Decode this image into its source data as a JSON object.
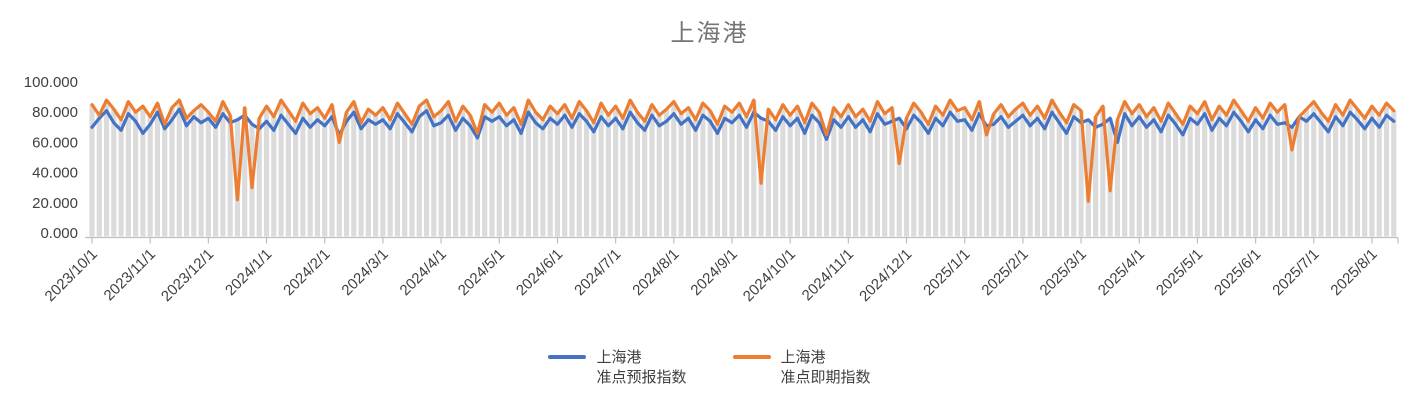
{
  "title": "上海港",
  "legend": [
    {
      "line1": "上海港",
      "line2": "准点预报指数"
    },
    {
      "line1": "上海港",
      "line2": "准点即期指数"
    }
  ],
  "colors": {
    "forecast_line": "#4472C4",
    "spot_line": "#ED7D31",
    "drop_lines": "#DBDBDB",
    "axis": "#BFBFBF",
    "tick_text": "#404040",
    "title_text": "#757575"
  },
  "chart_data": {
    "type": "line",
    "title": "上海港",
    "xlabel": "",
    "ylabel": "",
    "ylim": [
      0,
      100
    ],
    "y_tick_labels": [
      "0.000",
      "20.000",
      "40.000",
      "60.000",
      "80.000",
      "100.000"
    ],
    "grid": false,
    "legend_position": "bottom",
    "background_drop_lines": true,
    "points_per_month": 8,
    "x_tick_labels": [
      "2023/10/1",
      "2023/11/1",
      "2023/12/1",
      "2024/1/1",
      "2024/2/1",
      "2024/3/1",
      "2024/4/1",
      "2024/5/1",
      "2024/6/1",
      "2024/7/1",
      "2024/8/1",
      "2024/9/1",
      "2024/10/1",
      "2024/11/1",
      "2024/12/1",
      "2025/1/1",
      "2025/2/1",
      "2025/3/1",
      "2025/4/1",
      "2025/5/1",
      "2025/6/1",
      "2025/7/1",
      "2025/8/1"
    ],
    "series": [
      {
        "name": "上海港 准点预报指数",
        "color": "#4472C4",
        "values": [
          70,
          76,
          81,
          73,
          68,
          79,
          74,
          66,
          72,
          80,
          69,
          75,
          82,
          71,
          77,
          73,
          76,
          70,
          79,
          73,
          75,
          78,
          72,
          69,
          74,
          68,
          78,
          72,
          66,
          76,
          70,
          75,
          71,
          77,
          65,
          74,
          80,
          69,
          75,
          72,
          75,
          69,
          79,
          73,
          67,
          77,
          81,
          71,
          73,
          78,
          68,
          76,
          71,
          63,
          77,
          74,
          77,
          71,
          75,
          66,
          80,
          73,
          69,
          76,
          72,
          78,
          70,
          79,
          74,
          67,
          77,
          71,
          76,
          69,
          80,
          73,
          68,
          78,
          71,
          74,
          79,
          72,
          76,
          68,
          78,
          74,
          66,
          76,
          73,
          78,
          70,
          80,
          76,
          74,
          68,
          77,
          71,
          76,
          66,
          78,
          73,
          62,
          75,
          70,
          77,
          70,
          75,
          67,
          79,
          72,
          74,
          76,
          69,
          78,
          73,
          66,
          76,
          71,
          80,
          74,
          75,
          68,
          79,
          71,
          72,
          77,
          70,
          74,
          78,
          71,
          76,
          69,
          80,
          73,
          66,
          77,
          73,
          75,
          70,
          72,
          76,
          60,
          79,
          71,
          77,
          70,
          75,
          67,
          78,
          72,
          65,
          76,
          72,
          79,
          68,
          76,
          71,
          80,
          74,
          67,
          75,
          69,
          78,
          72,
          73,
          70,
          77,
          74,
          79,
          73,
          67,
          77,
          71,
          80,
          75,
          69,
          76,
          70,
          78,
          74
        ]
      },
      {
        "name": "上海港 准点即期指数",
        "color": "#ED7D31",
        "values": [
          85,
          78,
          88,
          82,
          75,
          87,
          80,
          84,
          77,
          86,
          72,
          83,
          88,
          76,
          81,
          85,
          80,
          74,
          87,
          78,
          22,
          83,
          30,
          76,
          84,
          77,
          88,
          81,
          74,
          86,
          79,
          83,
          76,
          85,
          60,
          80,
          87,
          73,
          82,
          78,
          83,
          75,
          86,
          79,
          72,
          84,
          88,
          77,
          81,
          87,
          74,
          84,
          78,
          66,
          85,
          80,
          86,
          78,
          83,
          72,
          88,
          80,
          75,
          84,
          79,
          85,
          76,
          87,
          81,
          73,
          86,
          78,
          84,
          76,
          88,
          80,
          74,
          85,
          78,
          82,
          87,
          79,
          83,
          75,
          86,
          81,
          72,
          84,
          80,
          86,
          77,
          88,
          33,
          82,
          75,
          85,
          78,
          84,
          73,
          86,
          80,
          65,
          83,
          77,
          85,
          77,
          82,
          74,
          87,
          79,
          83,
          46,
          76,
          86,
          80,
          72,
          84,
          78,
          88,
          81,
          83,
          75,
          87,
          65,
          79,
          85,
          77,
          82,
          86,
          78,
          84,
          76,
          88,
          80,
          73,
          85,
          81,
          21,
          77,
          84,
          28,
          75,
          87,
          79,
          85,
          77,
          83,
          74,
          86,
          79,
          72,
          84,
          79,
          87,
          75,
          84,
          78,
          88,
          81,
          74,
          83,
          76,
          86,
          80,
          85,
          55,
          77,
          82,
          87,
          80,
          74,
          85,
          78,
          88,
          82,
          76,
          84,
          78,
          86,
          81
        ]
      }
    ]
  }
}
